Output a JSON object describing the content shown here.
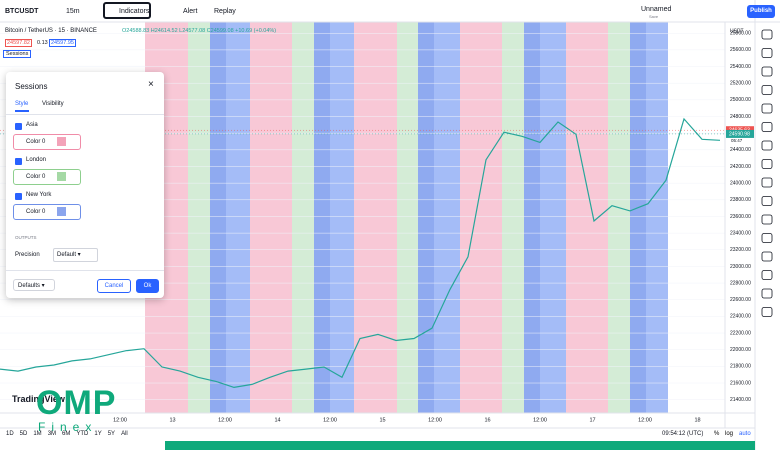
{
  "toolbar": {
    "symbol": "BTCUSDT",
    "interval": "15m",
    "indicators": "Indicators",
    "alert": "Alert",
    "replay": "Replay",
    "layout_name": "Unnamed",
    "save": "Save",
    "publish": "Publish"
  },
  "legend": {
    "title": "Bitcoin / TetherUS · 15 · BINANCE",
    "ohlc": "O24588.83 H24614.52 L24577.08 C24599.08 +10.69 (+0.04%)",
    "bid": "24597.82",
    "spread": "0.13",
    "ask": "24597.95",
    "indicator": "Sessions"
  },
  "dialog": {
    "title": "Sessions",
    "tabs": [
      "Style",
      "Visibility"
    ],
    "sessions": [
      {
        "name": "Asia",
        "color_label": "Color 0",
        "color": "#f08ca8"
      },
      {
        "name": "London",
        "color_label": "Color 0",
        "color": "#8ecf8e"
      },
      {
        "name": "New York",
        "color_label": "Color 0",
        "color": "#6e8fe8"
      }
    ],
    "outputs": "OUTPUTS",
    "precision_label": "Precision",
    "precision_value": "Default",
    "defaults": "Defaults",
    "cancel": "Cancel",
    "ok": "Ok"
  },
  "chart_data": {
    "type": "line",
    "currency": "USDT",
    "color": "#26a69a",
    "values": [
      21767,
      21743,
      21792,
      21816,
      21865,
      21890,
      21939,
      21988,
      22012,
      21792,
      21743,
      21669,
      21620,
      21547,
      21583,
      21669,
      21743,
      21767,
      21792,
      21669,
      22135,
      22184,
      22110,
      22135,
      22258,
      22724,
      23116,
      24280,
      24612,
      24563,
      24489,
      24734,
      24587,
      23545,
      23729,
      23667,
      23753,
      24035,
      24771,
      24526,
      24514
    ],
    "ylim": [
      21240,
      25935
    ],
    "yticks": [
      {
        "value": 21400,
        "label": "21400.00"
      },
      {
        "value": 21600,
        "label": "21600.00"
      },
      {
        "value": 21800,
        "label": "21800.00"
      },
      {
        "value": 22000,
        "label": "22000.00"
      },
      {
        "value": 22200,
        "label": "22200.00"
      },
      {
        "value": 22400,
        "label": "22400.00"
      },
      {
        "value": 22600,
        "label": "22600.00"
      },
      {
        "value": 22800,
        "label": "22800.00"
      },
      {
        "value": 23000,
        "label": "23000.00"
      },
      {
        "value": 23200,
        "label": "23200.00"
      },
      {
        "value": 23400,
        "label": "23400.00"
      },
      {
        "value": 23600,
        "label": "23600.00"
      },
      {
        "value": 23800,
        "label": "23800.00"
      },
      {
        "value": 24000,
        "label": "24000.00"
      },
      {
        "value": 24200,
        "label": "24200.00"
      },
      {
        "value": 24400,
        "label": "24400.00"
      },
      {
        "value": 24600,
        "label": "24600.00"
      },
      {
        "value": 24800,
        "label": "24800.00"
      },
      {
        "value": 25000,
        "label": "25000.00"
      },
      {
        "value": 25200,
        "label": "25200.00"
      },
      {
        "value": 25400,
        "label": "25400.00"
      },
      {
        "value": 25600,
        "label": "25600.00"
      },
      {
        "value": 25800,
        "label": "25800.00"
      }
    ],
    "price_labels": [
      24635.63,
      24590.98
    ],
    "countdown": "05:47",
    "xlabels": [
      "12:00",
      "13",
      "12:00",
      "14",
      "12:00",
      "15",
      "12:00",
      "16",
      "12:00",
      "17",
      "12:00",
      "18"
    ]
  },
  "bottom": {
    "ranges": [
      "1D",
      "5D",
      "1M",
      "3M",
      "6M",
      "YTD",
      "1Y",
      "5Y",
      "All"
    ],
    "clock": "09:54:12 (UTC)",
    "percent": "%",
    "log": "log",
    "auto": "auto"
  },
  "watermark": {
    "logo": "TradingView",
    "brand": "OMP",
    "sub": "Finex"
  }
}
